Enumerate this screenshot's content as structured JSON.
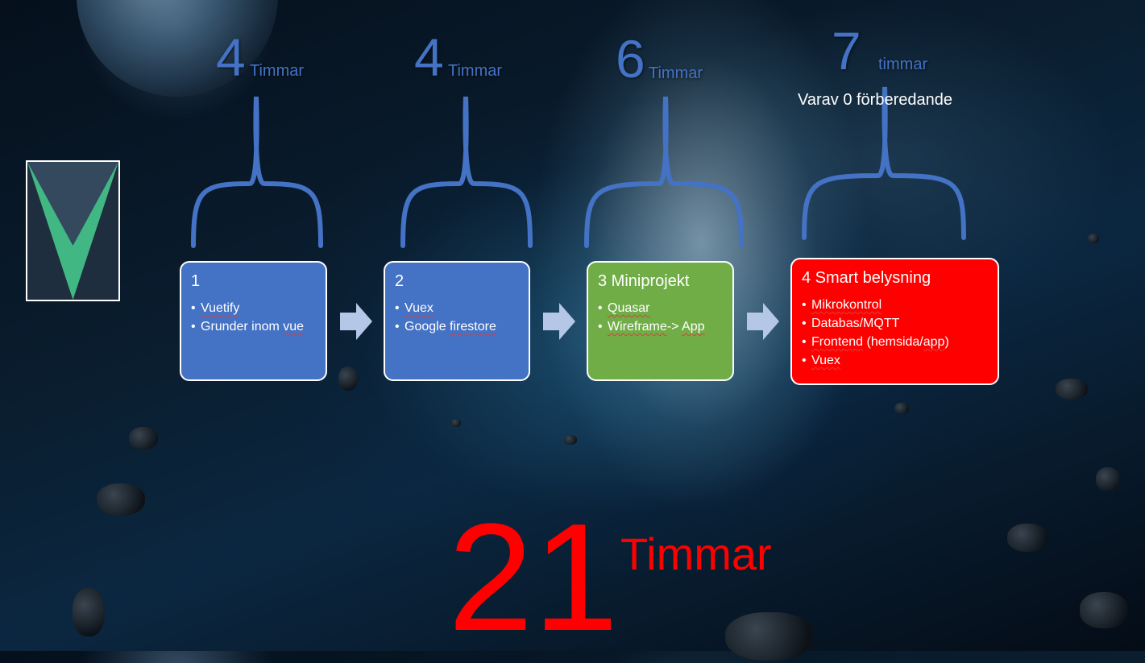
{
  "stages": [
    {
      "hours": "4",
      "unit": "Timmar",
      "title": "1",
      "items": [
        "Vuetify",
        "Grunder inom vue"
      ],
      "color": "#4472c4"
    },
    {
      "hours": "4",
      "unit": "Timmar",
      "title": "2",
      "items": [
        "Vuex",
        "Google firestore"
      ],
      "color": "#4472c4"
    },
    {
      "hours": "6",
      "unit": "Timmar",
      "title": "3 Miniprojekt",
      "items": [
        "Quasar",
        "Wireframe-> App"
      ],
      "color": "#70ad47"
    },
    {
      "hours": "7",
      "unit": "timmar",
      "note": "Varav 0 förberedande",
      "title": "4 Smart belysning",
      "items": [
        "Mikrokontrol",
        "Databas/MQTT",
        "Frontend (hemsida/app)",
        "Vuex"
      ],
      "color": "#ff0000"
    }
  ],
  "total": {
    "value": "21",
    "unit": "Timmar"
  },
  "colors": {
    "brace": "#4472c4",
    "total": "#ff0000",
    "arrow": "#b4c7e7",
    "vue_green": "#41b883",
    "vue_dark": "#35495e"
  },
  "icons": {
    "logo": "vue-logo-icon",
    "arrow": "right-arrow-icon"
  }
}
